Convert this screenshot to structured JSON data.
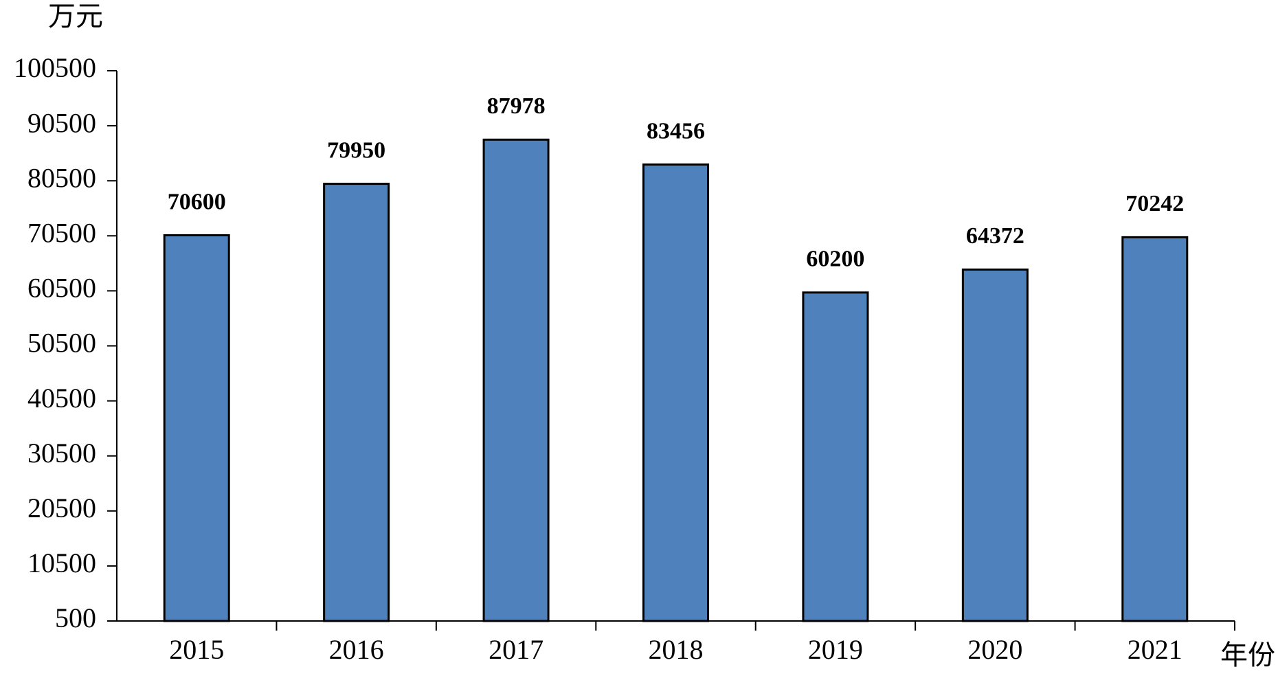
{
  "chart_data": {
    "type": "bar",
    "y_label": "万元",
    "x_label": "年份",
    "categories": [
      "2015",
      "2016",
      "2017",
      "2018",
      "2019",
      "2020",
      "2021"
    ],
    "values": [
      70600,
      79950,
      87978,
      83456,
      60200,
      64372,
      70242
    ],
    "color": "#4f81bd",
    "ylim": [
      500,
      100500
    ],
    "yticks": [
      500,
      10500,
      20500,
      30500,
      40500,
      50500,
      60500,
      70500,
      80500,
      90500,
      100500
    ],
    "grid": false
  }
}
